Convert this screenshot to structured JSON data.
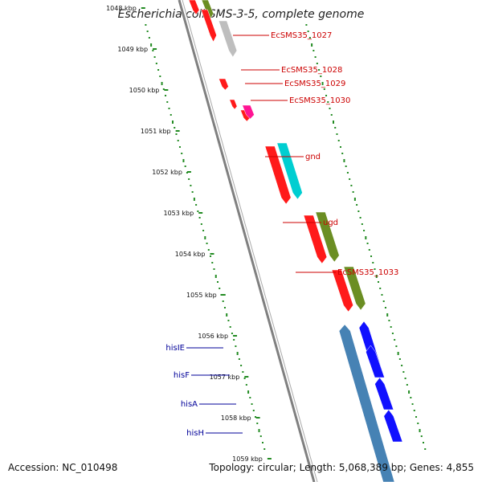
{
  "title": "Escherichia coli SMS-3-5, complete genome",
  "footer": {
    "accession": "Accession: NC_010498",
    "summary": "Topology: circular; Length: 5,068,389 bp; Genes: 4,855"
  },
  "ticks": [
    {
      "label": "1048 kbp"
    },
    {
      "label": "1049 kbp"
    },
    {
      "label": "1050 kbp"
    },
    {
      "label": "1051 kbp"
    },
    {
      "label": "1052 kbp"
    },
    {
      "label": "1053 kbp"
    },
    {
      "label": "1054 kbp"
    },
    {
      "label": "1055 kbp"
    },
    {
      "label": "1056 kbp"
    },
    {
      "label": "1057 kbp"
    },
    {
      "label": "1058 kbp"
    },
    {
      "label": "1059 kbp"
    }
  ],
  "genes": [
    {
      "name": "",
      "strand": "plus",
      "color": "#ff1a1a"
    },
    {
      "name": "",
      "strand": "plus",
      "color": "#6b8e23"
    },
    {
      "name": "EcSMS35_1027",
      "strand": "plus",
      "color": "#ff1a1a"
    },
    {
      "name": "",
      "strand": "plus",
      "color": "#bebebe"
    },
    {
      "name": "EcSMS35_1028",
      "strand": "plus",
      "color": "#ff1a1a"
    },
    {
      "name": "EcSMS35_1029",
      "strand": "plus",
      "color": "#ff1a1a"
    },
    {
      "name": "EcSMS35_1030",
      "strand": "plus",
      "color": "#ff1a1a"
    },
    {
      "name": "",
      "strand": "plus",
      "color": "#ff1493"
    },
    {
      "name": "gnd",
      "strand": "plus",
      "color": "#ff1a1a"
    },
    {
      "name": "",
      "strand": "plus",
      "color": "#00ced1"
    },
    {
      "name": "ugd",
      "strand": "plus",
      "color": "#ff1a1a"
    },
    {
      "name": "",
      "strand": "plus",
      "color": "#6b8e23"
    },
    {
      "name": "EcSMS35_1033",
      "strand": "plus",
      "color": "#ff1a1a"
    },
    {
      "name": "",
      "strand": "plus",
      "color": "#6b8e23"
    },
    {
      "name": "hisIE",
      "strand": "minus",
      "color": "#1010ff"
    },
    {
      "name": "",
      "strand": "minus",
      "color": "#4682b4"
    },
    {
      "name": "hisF",
      "strand": "minus",
      "color": "#1010ff"
    },
    {
      "name": "hisA",
      "strand": "minus",
      "color": "#1010ff"
    },
    {
      "name": "hisH",
      "strand": "minus",
      "color": "#1010ff"
    }
  ],
  "colors": {
    "plus_label": "#cc0000",
    "minus_label": "#000099",
    "backbone": "#808080",
    "gc_dots": "#228b22"
  }
}
